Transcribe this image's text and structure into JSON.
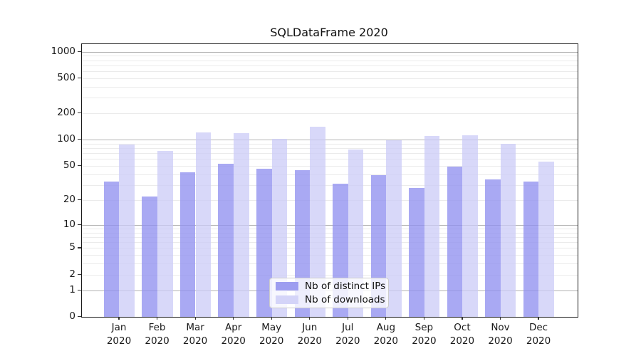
{
  "figure": {
    "background": "#ffffff"
  },
  "chart_data": {
    "type": "bar",
    "title": "SQLDataFrame 2020",
    "year_label": "2020",
    "months": [
      "Jan",
      "Feb",
      "Mar",
      "Apr",
      "May",
      "Jun",
      "Jul",
      "Aug",
      "Sep",
      "Oct",
      "Nov",
      "Dec"
    ],
    "categories": [
      "Jan 2020",
      "Feb 2020",
      "Mar 2020",
      "Apr 2020",
      "May 2020",
      "Jun 2020",
      "Jul 2020",
      "Aug 2020",
      "Sep 2020",
      "Oct 2020",
      "Nov 2020",
      "Dec 2020"
    ],
    "series": [
      {
        "name": "Nb of distinct IPs",
        "values": [
          33,
          22,
          42,
          53,
          46,
          45,
          31,
          39,
          28,
          49,
          35,
          33
        ],
        "fill": "rgba(145,145,240,0.78)",
        "swatch": "#9d9df0"
      },
      {
        "name": "Nb of downloads",
        "values": [
          88,
          75,
          121,
          119,
          102,
          140,
          77,
          99,
          110,
          113,
          89,
          56
        ],
        "fill": "rgba(203,203,247,0.75)",
        "swatch": "#d4d4f8"
      }
    ],
    "yscale": "log1p",
    "y_ticks": [
      0,
      1,
      2,
      5,
      10,
      20,
      50,
      100,
      200,
      500,
      1000
    ],
    "ylim": [
      0,
      1200
    ],
    "grid": {
      "minor_color": "#ebebeb",
      "major_color": "#b3b3b3",
      "major_at": [
        1,
        10,
        100,
        1000
      ]
    },
    "legend": {
      "position": "lower center"
    }
  }
}
